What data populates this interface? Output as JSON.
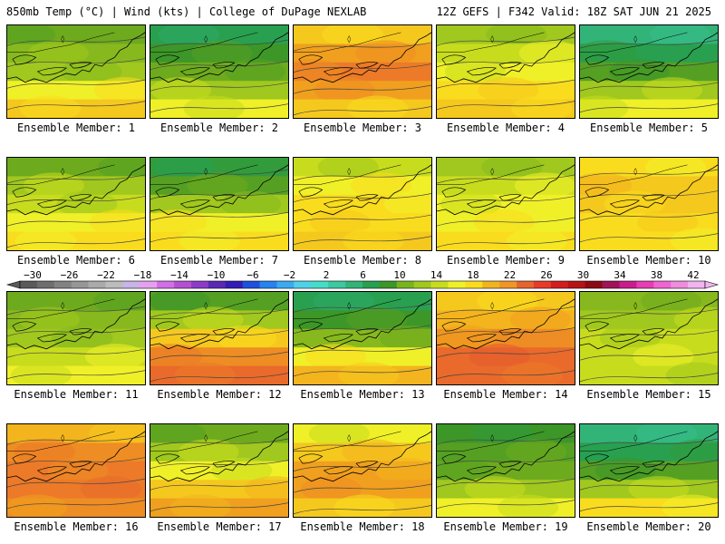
{
  "header": {
    "left": "850mb Temp (°C) | Wind (kts) | College of DuPage NEXLAB",
    "right": "12Z GEFS | F342 Valid: 18Z SAT JUN 21 2025"
  },
  "colorbar": {
    "tick_labels": [
      "−30",
      "−26",
      "−22",
      "−18",
      "−14",
      "−10",
      "−6",
      "−2",
      "2",
      "6",
      "10",
      "14",
      "18",
      "22",
      "26",
      "30",
      "34",
      "38",
      "42"
    ],
    "colors": [
      "#5a5a5a",
      "#6e6e6e",
      "#828282",
      "#969696",
      "#aaaaaa",
      "#bcbcbc",
      "#c8b4e6",
      "#e6a0f0",
      "#d26ee6",
      "#b450d2",
      "#8c3cc8",
      "#5a28b4",
      "#321eb4",
      "#1e50dc",
      "#2882f0",
      "#3caaf0",
      "#50d2e6",
      "#46dcc8",
      "#3cc8a0",
      "#32b478",
      "#28a050",
      "#3c9628",
      "#78b41e",
      "#a0c81e",
      "#c8dc1e",
      "#f0f028",
      "#fadc1e",
      "#f0b41e",
      "#f09628",
      "#e6642d",
      "#e63c28",
      "#d21e1e",
      "#b41414",
      "#8c0a14",
      "#a0145a",
      "#c81e8c",
      "#e63cb4",
      "#f064d2",
      "#f08cdc",
      "#f0b4f0"
    ]
  },
  "members": [
    {
      "label": "Ensemble Member: 1",
      "temps": [
        10,
        11,
        12,
        14,
        16
      ]
    },
    {
      "label": "Ensemble Member: 2",
      "temps": [
        6,
        8,
        10,
        12,
        14
      ]
    },
    {
      "label": "Ensemble Member: 3",
      "temps": [
        16,
        18,
        20,
        18,
        16
      ]
    },
    {
      "label": "Ensemble Member: 4",
      "temps": [
        12,
        13,
        14,
        15,
        16
      ]
    },
    {
      "label": "Ensemble Member: 5",
      "temps": [
        4,
        6,
        9,
        12,
        14
      ]
    },
    {
      "label": "Ensemble Member: 6",
      "temps": [
        10,
        12,
        13,
        14,
        15
      ]
    },
    {
      "label": "Ensemble Member: 7",
      "temps": [
        7,
        9,
        12,
        14,
        15
      ]
    },
    {
      "label": "Ensemble Member: 8",
      "temps": [
        13,
        14,
        15,
        15,
        16
      ]
    },
    {
      "label": "Ensemble Member: 9",
      "temps": [
        12,
        13,
        14,
        14,
        15
      ]
    },
    {
      "label": "Ensemble Member: 10",
      "temps": [
        15,
        16,
        16,
        15,
        15
      ]
    },
    {
      "label": "Ensemble Member: 11",
      "temps": [
        10,
        11,
        12,
        13,
        14
      ]
    },
    {
      "label": "Ensemble Member: 12",
      "temps": [
        9,
        12,
        16,
        19,
        21
      ]
    },
    {
      "label": "Ensemble Member: 13",
      "temps": [
        6,
        8,
        11,
        14,
        17
      ]
    },
    {
      "label": "Ensemble Member: 14",
      "temps": [
        16,
        17,
        19,
        21,
        21
      ]
    },
    {
      "label": "Ensemble Member: 15",
      "temps": [
        11,
        12,
        13,
        13,
        13
      ]
    },
    {
      "label": "Ensemble Member: 16",
      "temps": [
        17,
        19,
        20,
        20,
        19
      ]
    },
    {
      "label": "Ensemble Member: 17",
      "temps": [
        10,
        12,
        14,
        16,
        18
      ]
    },
    {
      "label": "Ensemble Member: 18",
      "temps": [
        14,
        16,
        18,
        18,
        16
      ]
    },
    {
      "label": "Ensemble Member: 19",
      "temps": [
        8,
        9,
        10,
        12,
        14
      ]
    },
    {
      "label": "Ensemble Member: 20",
      "temps": [
        4,
        6,
        9,
        12,
        15
      ]
    }
  ]
}
